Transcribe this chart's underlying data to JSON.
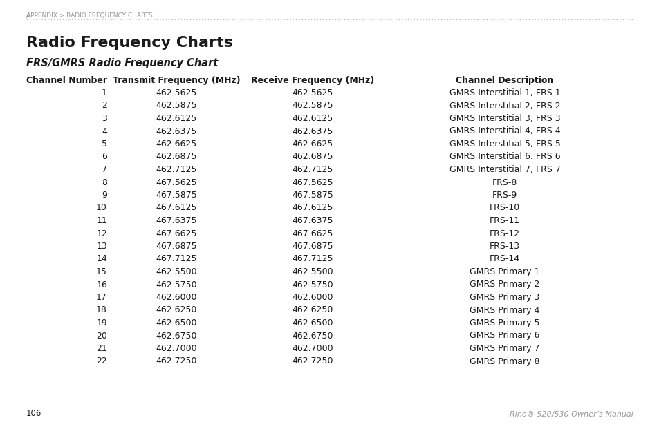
{
  "breadcrumb": "Appendix » Radio Frequency Charts",
  "breadcrumb_parts": [
    "APPENDIX",
    " > ",
    "RADIO FREQUENCY CHARTS"
  ],
  "title": "Radio Frequency Charts",
  "subtitle": "FRS/GMRS Radio Frequency Chart",
  "col_headers": [
    "Channel Number",
    "Transmit Frequency (MHz)",
    "Receive Frequency (MHz)",
    "Channel Description"
  ],
  "rows": [
    [
      "1",
      "462.5625",
      "462.5625",
      "GMRS Interstitial 1, FRS 1"
    ],
    [
      "2",
      "462.5875",
      "462.5875",
      "GMRS Interstitial 2, FRS 2"
    ],
    [
      "3",
      "462.6125",
      "462.6125",
      "GMRS Interstitial 3, FRS 3"
    ],
    [
      "4",
      "462.6375",
      "462.6375",
      "GMRS Interstitial 4, FRS 4"
    ],
    [
      "5",
      "462.6625",
      "462.6625",
      "GMRS Interstitial 5, FRS 5"
    ],
    [
      "6",
      "462.6875",
      "462.6875",
      "GMRS Interstitial 6. FRS 6"
    ],
    [
      "7",
      "462.7125",
      "462.7125",
      "GMRS Interstitial 7, FRS 7"
    ],
    [
      "8",
      "467.5625",
      "467.5625",
      "FRS-8"
    ],
    [
      "9",
      "467.5875",
      "467.5875",
      "FRS-9"
    ],
    [
      "10",
      "467.6125",
      "467.6125",
      "FRS-10"
    ],
    [
      "11",
      "467.6375",
      "467.6375",
      "FRS-11"
    ],
    [
      "12",
      "467.6625",
      "467.6625",
      "FRS-12"
    ],
    [
      "13",
      "467.6875",
      "467.6875",
      "FRS-13"
    ],
    [
      "14",
      "467.7125",
      "467.7125",
      "FRS-14"
    ],
    [
      "15",
      "462.5500",
      "462.5500",
      "GMRS Primary 1"
    ],
    [
      "16",
      "462.5750",
      "462.5750",
      "GMRS Primary 2"
    ],
    [
      "17",
      "462.6000",
      "462.6000",
      "GMRS Primary 3"
    ],
    [
      "18",
      "462.6250",
      "462.6250",
      "GMRS Primary 4"
    ],
    [
      "19",
      "462.6500",
      "462.6500",
      "GMRS Primary 5"
    ],
    [
      "20",
      "462.6750",
      "462.6750",
      "GMRS Primary 6"
    ],
    [
      "21",
      "462.7000",
      "462.7000",
      "GMRS Primary 7"
    ],
    [
      "22",
      "462.7250",
      "462.7250",
      "GMRS Primary 8"
    ]
  ],
  "page_number": "106",
  "footer_text": "Rino® 520/530 Owner’s Manual",
  "bg_color": "#ffffff",
  "text_color": "#1a1a1a",
  "header_color": "#1a1a1a",
  "breadcrumb_color": "#999999",
  "footer_color": "#999999",
  "dotted_line_color": "#bbbbbb",
  "figwidth": 9.54,
  "figheight": 6.21,
  "dpi": 100
}
